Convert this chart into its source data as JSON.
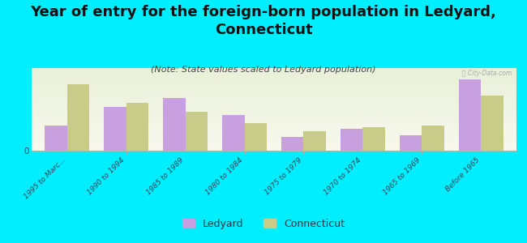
{
  "title": "Year of entry for the foreign-born population in Ledyard,\nConnecticut",
  "subtitle": "(Note: State values scaled to Ledyard population)",
  "categories": [
    "1995 to Marc...",
    "1990 to 1994",
    "1985 to 1989",
    "1980 to 1984",
    "1975 to 1979",
    "1970 to 1974",
    "1965 to 1969",
    "Before 1965"
  ],
  "ledyard_values": [
    18,
    32,
    38,
    26,
    10,
    16,
    11,
    52
  ],
  "connecticut_values": [
    48,
    35,
    28,
    20,
    14,
    17,
    18,
    40
  ],
  "ledyard_color": "#c8a0e0",
  "connecticut_color": "#c8cc88",
  "background_color": "#00eeff",
  "plot_bg_start": "#f0f5e0",
  "plot_bg_end": "#f8f8ee",
  "title_fontsize": 13,
  "subtitle_fontsize": 8,
  "bar_width": 0.38,
  "ylim": [
    0,
    60
  ],
  "watermark": "ⓘ City-Data.com"
}
